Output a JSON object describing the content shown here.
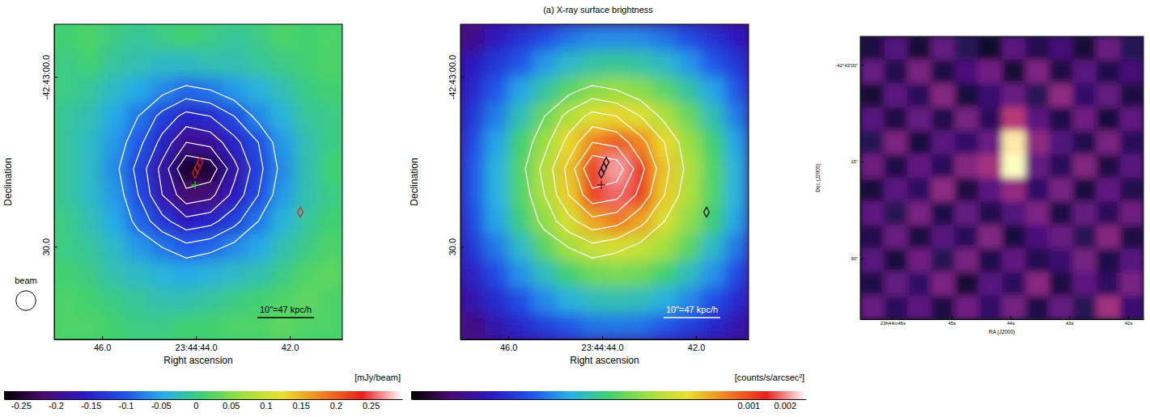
{
  "chart_data": [
    {
      "type": "image",
      "color": "jet",
      "x_label": "Right ascension",
      "y_label": "Declination",
      "xlim": [
        47.02,
        40.88
      ],
      "xticks": [
        {
          "value": 46,
          "label": "46.0"
        },
        {
          "value": 44,
          "label": "23:44:44.0"
        },
        {
          "value": 42,
          "label": "42.0"
        }
      ],
      "ylim": [
        -9.3,
        46.4
      ],
      "yticks": [
        {
          "value": 0,
          "label": "-42:43:00.0"
        },
        {
          "value": 30,
          "label": "30.0"
        }
      ],
      "cells": [
        [
          0.01,
          0.02,
          0.0,
          -0.01,
          0.0,
          0.01,
          0.0,
          -0.01,
          0.0,
          0.02,
          0.01,
          0.02
        ],
        [
          0.0,
          0.01,
          -0.01,
          -0.02,
          -0.03,
          -0.03,
          -0.02,
          -0.02,
          -0.01,
          0.0,
          0.01,
          0.02
        ],
        [
          0.0,
          -0.01,
          -0.03,
          -0.05,
          -0.07,
          -0.09,
          -0.08,
          -0.06,
          -0.04,
          -0.02,
          0.0,
          0.01
        ],
        [
          -0.01,
          -0.02,
          -0.05,
          -0.08,
          -0.12,
          -0.15,
          -0.14,
          -0.11,
          -0.07,
          -0.04,
          -0.01,
          0.0
        ],
        [
          -0.01,
          -0.03,
          -0.06,
          -0.1,
          -0.15,
          -0.2,
          -0.19,
          -0.15,
          -0.11,
          -0.06,
          -0.02,
          0.0
        ],
        [
          -0.01,
          -0.03,
          -0.07,
          -0.12,
          -0.18,
          -0.26,
          -0.25,
          -0.18,
          -0.12,
          -0.07,
          -0.02,
          0.01
        ],
        [
          -0.01,
          -0.03,
          -0.06,
          -0.11,
          -0.17,
          -0.22,
          -0.21,
          -0.16,
          -0.11,
          -0.06,
          -0.02,
          0.0
        ],
        [
          0.0,
          -0.02,
          -0.05,
          -0.09,
          -0.13,
          -0.16,
          -0.15,
          -0.12,
          -0.08,
          -0.04,
          -0.01,
          0.01
        ],
        [
          0.0,
          -0.01,
          -0.03,
          -0.06,
          -0.08,
          -0.1,
          -0.09,
          -0.07,
          -0.05,
          -0.02,
          0.0,
          0.02
        ],
        [
          0.01,
          0.0,
          -0.02,
          -0.03,
          -0.04,
          -0.05,
          -0.04,
          -0.03,
          -0.02,
          0.0,
          0.02,
          0.03
        ],
        [
          0.02,
          0.01,
          0.0,
          -0.01,
          -0.02,
          -0.02,
          -0.01,
          0.0,
          0.01,
          0.02,
          0.03,
          0.02
        ],
        [
          0.02,
          0.02,
          0.01,
          0.0,
          0.0,
          0.01,
          0.01,
          0.02,
          0.02,
          0.03,
          0.02,
          0.02
        ]
      ],
      "colorbar": {
        "range": [
          -0.274,
          0.295
        ],
        "ticks": [
          -0.25,
          -0.2,
          -0.15,
          -0.1,
          -0.05,
          0,
          0.05,
          0.1,
          0.15,
          0.2,
          0.25
        ],
        "label": "[mJy/beam]"
      },
      "contour_levels": [
        -0.08,
        -0.11,
        -0.14,
        -0.17,
        -0.2,
        -0.23
      ],
      "series": [
        {
          "marker": "diamond",
          "color": "#e0201c",
          "x": [
            43.914,
            43.966,
            44.017,
            41.776
          ],
          "y": [
            15.1,
            16.1,
            17.0,
            23.9
          ]
        },
        {
          "marker": "plus",
          "color": "#1fc21f",
          "x": [
            44.017
          ],
          "y": [
            19.1
          ]
        }
      ],
      "scale_bar": {
        "label": "10\"=47 kpc/h",
        "length": 10,
        "color": "#000000"
      },
      "beam": {
        "label": "beam",
        "diameter": 3.5
      }
    },
    {
      "type": "image",
      "color": "jet",
      "title": "(a) X-ray surface brightness",
      "x_label": "Right ascension",
      "y_label": "Declination",
      "xlim": [
        47.02,
        40.88
      ],
      "xticks": [
        {
          "value": 46,
          "label": "46.0"
        },
        {
          "value": 44,
          "label": "23:44:44.0"
        },
        {
          "value": 42,
          "label": "42.0"
        }
      ],
      "ylim": [
        -9.3,
        46.4
      ],
      "yticks": [
        {
          "value": 0,
          "label": "-42:43:00.0"
        },
        {
          "value": 30,
          "label": "30.0"
        }
      ],
      "cells": [
        [
          4e-06,
          7e-06,
          1e-05,
          1.4e-05,
          2e-05,
          2.4e-05,
          2.5e-05,
          2.4e-05,
          2e-05,
          1.4e-05,
          1e-05,
          7e-06
        ],
        [
          7e-06,
          1.1e-05,
          1.6e-05,
          2.7e-05,
          4e-05,
          5e-05,
          5.5e-05,
          5e-05,
          4e-05,
          2.7e-05,
          1.6e-05,
          1.1e-05
        ],
        [
          9e-06,
          1.6e-05,
          3e-05,
          5e-05,
          8.5e-05,
          0.00012,
          0.00014,
          0.00012,
          8.5e-05,
          5e-05,
          3e-05,
          1.6e-05
        ],
        [
          1.1e-05,
          2.2e-05,
          4.5e-05,
          9.5e-05,
          0.00017,
          0.00028,
          0.00034,
          0.00028,
          0.00017,
          9.5e-05,
          4.5e-05,
          2.2e-05
        ],
        [
          1.4e-05,
          3e-05,
          7e-05,
          0.00014,
          0.00033,
          0.00065,
          0.0009,
          0.00065,
          0.00033,
          0.00014,
          7e-05,
          3e-05
        ],
        [
          1.6e-05,
          3.5e-05,
          8e-05,
          0.00018,
          0.00039,
          0.0012,
          0.0022,
          0.0012,
          0.00039,
          0.00018,
          8e-05,
          3.5e-05
        ],
        [
          1.6e-05,
          3.4e-05,
          7.8e-05,
          0.00017,
          0.00037,
          0.0011,
          0.0018,
          0.0011,
          0.00037,
          0.00017,
          7.8e-05,
          3.4e-05
        ],
        [
          1.4e-05,
          3e-05,
          6.5e-05,
          0.00013,
          0.00026,
          0.0005,
          0.0007,
          0.0005,
          0.00026,
          0.00013,
          6.5e-05,
          3e-05
        ],
        [
          1.1e-05,
          2.1e-05,
          4e-05,
          8.5e-05,
          0.00015,
          0.00022,
          0.00026,
          0.00022,
          0.00015,
          8.5e-05,
          4e-05,
          2.1e-05
        ],
        [
          8e-06,
          1.4e-05,
          2.6e-05,
          4.3e-05,
          7e-05,
          0.0001,
          0.00011,
          0.0001,
          7e-05,
          4.3e-05,
          2.6e-05,
          1.4e-05
        ],
        [
          6e-06,
          9.5e-06,
          1.5e-05,
          2.4e-05,
          3.5e-05,
          4.3e-05,
          4.6e-05,
          4.3e-05,
          3.5e-05,
          2.4e-05,
          1.5e-05,
          9.5e-06
        ],
        [
          4e-06,
          6e-06,
          9e-06,
          1.2e-05,
          1.6e-05,
          2e-05,
          2.1e-05,
          2e-05,
          1.6e-05,
          1.2e-05,
          9e-06,
          6e-06
        ]
      ],
      "colorbar": {
        "range": [
          1.6e-06,
          0.003
        ],
        "ticks": [
          0.001,
          0.002
        ],
        "label": "[counts/s/arcsec²]",
        "log": true
      },
      "contour_levels": [
        -0.08,
        -0.11,
        -0.14,
        -0.17,
        -0.2,
        -0.23
      ],
      "series": [
        {
          "marker": "diamond",
          "color": "#000000",
          "x": [
            43.914,
            43.966,
            44.017,
            41.776
          ],
          "y": [
            15.1,
            16.1,
            17.0,
            23.9
          ]
        },
        {
          "marker": "plus",
          "color": "#5a0000",
          "x": [
            44.017
          ],
          "y": [
            19.1
          ]
        }
      ],
      "scale_bar": {
        "label": "10\"=47 kpc/h",
        "length": 10,
        "color": "#ffffff"
      }
    },
    {
      "type": "image",
      "color": "magma",
      "x_label": "RA (J2000)",
      "y_label": "Dec (J2000)",
      "xlim": [
        46.55,
        41.74
      ],
      "xticks": [
        {
          "value": 46,
          "label": "23h44m46s"
        },
        {
          "value": 45,
          "label": "45s"
        },
        {
          "value": 44,
          "label": "44s"
        },
        {
          "value": 43,
          "label": "43s"
        },
        {
          "value": 42,
          "label": "42s"
        }
      ],
      "ylim": [
        -4.4,
        39.4
      ],
      "yticks": [
        {
          "value": 0,
          "label": "-42°43′00″"
        },
        {
          "value": 15,
          "label": "15″"
        },
        {
          "value": 30,
          "label": "30″"
        }
      ],
      "clim": [
        0,
        1
      ],
      "cells": [
        [
          0.12,
          0.25,
          0.1,
          0.3,
          0.15,
          0.08,
          0.28,
          0.14,
          0.22,
          0.1,
          0.32,
          0.15
        ],
        [
          0.3,
          0.14,
          0.35,
          0.12,
          0.24,
          0.33,
          0.1,
          0.36,
          0.12,
          0.27,
          0.13,
          0.22
        ],
        [
          0.1,
          0.28,
          0.16,
          0.38,
          0.11,
          0.2,
          0.31,
          0.15,
          0.4,
          0.18,
          0.3,
          0.12
        ],
        [
          0.26,
          0.12,
          0.3,
          0.14,
          0.34,
          0.16,
          0.5,
          0.28,
          0.13,
          0.33,
          0.11,
          0.29
        ],
        [
          0.15,
          0.36,
          0.11,
          0.27,
          0.18,
          0.32,
          0.95,
          0.4,
          0.25,
          0.14,
          0.35,
          0.16
        ],
        [
          0.33,
          0.13,
          0.29,
          0.16,
          0.38,
          0.45,
          1.0,
          0.3,
          0.16,
          0.37,
          0.12,
          0.27
        ],
        [
          0.11,
          0.27,
          0.17,
          0.4,
          0.12,
          0.28,
          0.42,
          0.18,
          0.34,
          0.11,
          0.29,
          0.14
        ],
        [
          0.29,
          0.15,
          0.35,
          0.13,
          0.3,
          0.14,
          0.25,
          0.36,
          0.12,
          0.3,
          0.16,
          0.33
        ],
        [
          0.14,
          0.32,
          0.12,
          0.26,
          0.16,
          0.37,
          0.11,
          0.24,
          0.31,
          0.15,
          0.38,
          0.12
        ],
        [
          0.27,
          0.11,
          0.33,
          0.15,
          0.35,
          0.13,
          0.29,
          0.14,
          0.2,
          0.34,
          0.13,
          0.26
        ],
        [
          0.13,
          0.3,
          0.18,
          0.36,
          0.1,
          0.26,
          0.16,
          0.39,
          0.12,
          0.28,
          0.17,
          0.35
        ],
        [
          0.31,
          0.16,
          0.28,
          0.12,
          0.33,
          0.18,
          0.34,
          0.13,
          0.3,
          0.15,
          0.45,
          0.2
        ]
      ]
    }
  ]
}
